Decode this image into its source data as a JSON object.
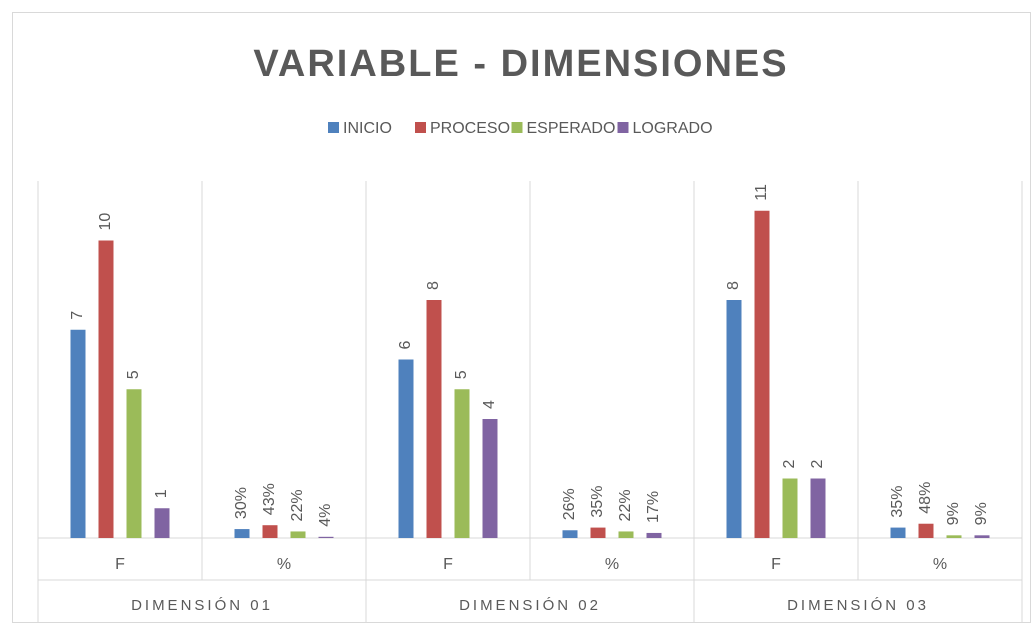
{
  "chart_data": {
    "type": "bar",
    "title": "VARIABLE - DIMENSIONES",
    "categories": [
      "F",
      "%",
      "F",
      "%",
      "F",
      "%"
    ],
    "groups": [
      "DIMENSIÓN 01",
      "DIMENSIÓN 02",
      "DIMENSIÓN 03"
    ],
    "series": [
      {
        "name": "INICIO",
        "color": "#4f81bd",
        "values": [
          7,
          0.3,
          6,
          0.26,
          8,
          0.35
        ],
        "value_labels": [
          "7",
          "30%",
          "6",
          "26%",
          "8",
          "35%"
        ]
      },
      {
        "name": "PROCESO",
        "color": "#c0504d",
        "values": [
          10,
          0.43,
          8,
          0.35,
          11,
          0.48
        ],
        "value_labels": [
          "10",
          "43%",
          "8",
          "35%",
          "11",
          "48%"
        ]
      },
      {
        "name": "ESPERADO",
        "color": "#9bbb59",
        "values": [
          5,
          0.22,
          5,
          0.22,
          2,
          0.09
        ],
        "value_labels": [
          "5",
          "22%",
          "5",
          "22%",
          "2",
          "9%"
        ]
      },
      {
        "name": "LOGRADO",
        "color": "#8064a2",
        "values": [
          1,
          0.04,
          4,
          0.17,
          2,
          0.09
        ],
        "value_labels": [
          "1",
          "4%",
          "4",
          "17%",
          "2",
          "9%"
        ]
      }
    ],
    "ylim": [
      0,
      12
    ],
    "legend": "top"
  }
}
